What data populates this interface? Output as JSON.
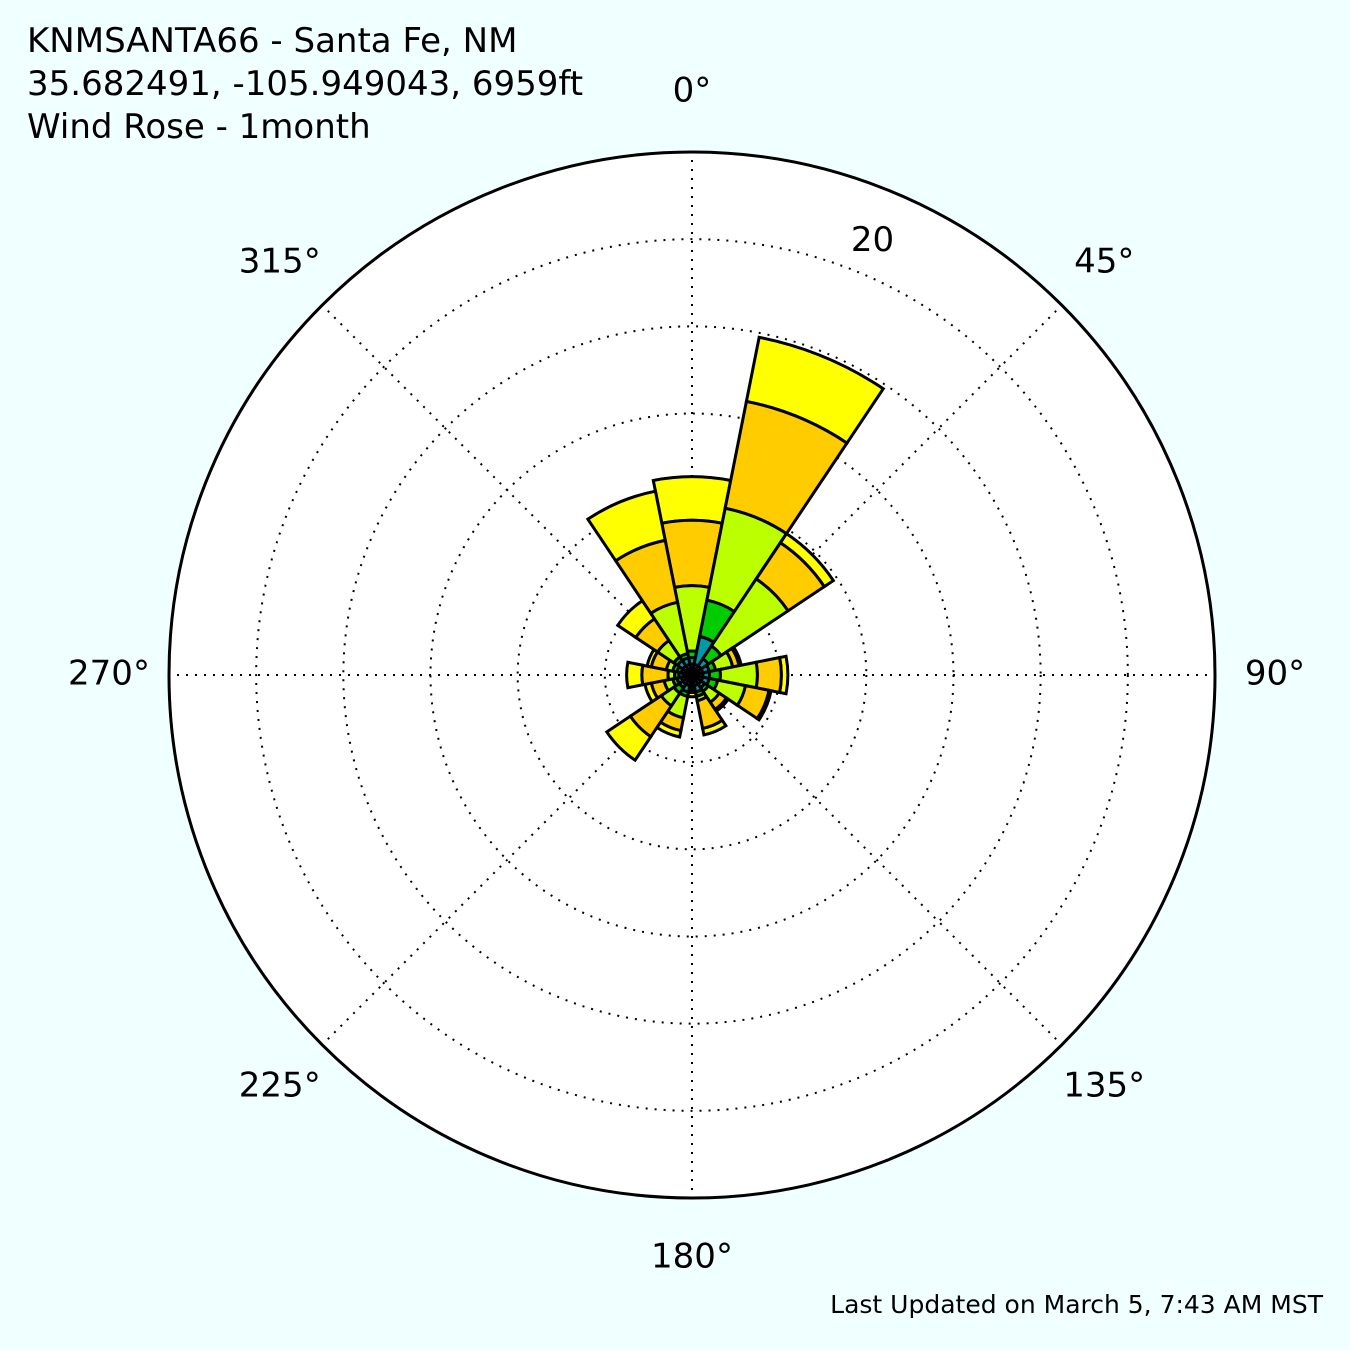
{
  "header": {
    "station": "KNMSANTA66 - Santa Fe, NM",
    "coords": "35.682491, -105.949043, 6959ft",
    "chart_title": "Wind Rose - 1month"
  },
  "footer": {
    "updated": "Last Updated on March 5, 7:43 AM MST"
  },
  "chart_data": {
    "type": "wind-rose",
    "radial_max": 24,
    "radial_gridlines": [
      4,
      8,
      12,
      16,
      20
    ],
    "radial_label": "20",
    "angle_labels": [
      "0°",
      "45°",
      "90°",
      "135°",
      "180°",
      "225°",
      "270°",
      "315°"
    ],
    "grid": true,
    "bin_width_deg": 22.5,
    "directions_deg": [
      0,
      22.5,
      45,
      67.5,
      90,
      112.5,
      135,
      157.5,
      180,
      202.5,
      225,
      247.5,
      270,
      292.5,
      315,
      337.5
    ],
    "speed_bin_colors": [
      "#2e4cff",
      "#3b78ff",
      "#0099aa",
      "#00cc00",
      "#bbff00",
      "#ffcc00",
      "#ffff00"
    ],
    "cumulative_radii": [
      [
        0.2,
        0.5,
        0.8,
        1.1,
        4.1,
        7.1,
        9.1
      ],
      [
        0.2,
        0.5,
        1.8,
        3.5,
        7.8,
        12.8,
        15.8
      ],
      [
        0.2,
        0.5,
        0.9,
        1.6,
        5.3,
        7.3,
        7.8
      ],
      [
        0.2,
        0.5,
        0.8,
        1.1,
        1.9,
        2.2,
        2.3
      ],
      [
        0.2,
        0.5,
        0.8,
        1.3,
        3.0,
        4.1,
        4.4
      ],
      [
        0.2,
        0.5,
        0.8,
        1.2,
        2.5,
        3.6,
        3.7
      ],
      [
        0.2,
        0.5,
        0.7,
        0.9,
        1.5,
        1.9,
        2.0
      ],
      [
        0.2,
        0.5,
        0.8,
        1.0,
        1.2,
        2.5,
        2.8
      ],
      [
        0.2,
        0.4,
        0.5,
        0.6,
        0.7,
        0.8,
        1.0
      ],
      [
        0.2,
        0.5,
        0.8,
        1.0,
        2.0,
        2.6,
        2.9
      ],
      [
        0.2,
        0.5,
        0.7,
        1.0,
        1.7,
        3.4,
        4.7
      ],
      [
        0.2,
        0.5,
        0.7,
        0.9,
        1.3,
        1.9,
        2.2
      ],
      [
        0.2,
        0.4,
        0.6,
        0.8,
        1.1,
        2.3,
        3.0
      ],
      [
        0.2,
        0.5,
        0.7,
        0.9,
        1.2,
        1.9,
        2.1
      ],
      [
        0.2,
        0.5,
        0.8,
        1.0,
        1.9,
        3.1,
        4.1
      ],
      [
        0.2,
        0.5,
        0.8,
        1.0,
        3.4,
        6.3,
        8.6
      ]
    ]
  }
}
